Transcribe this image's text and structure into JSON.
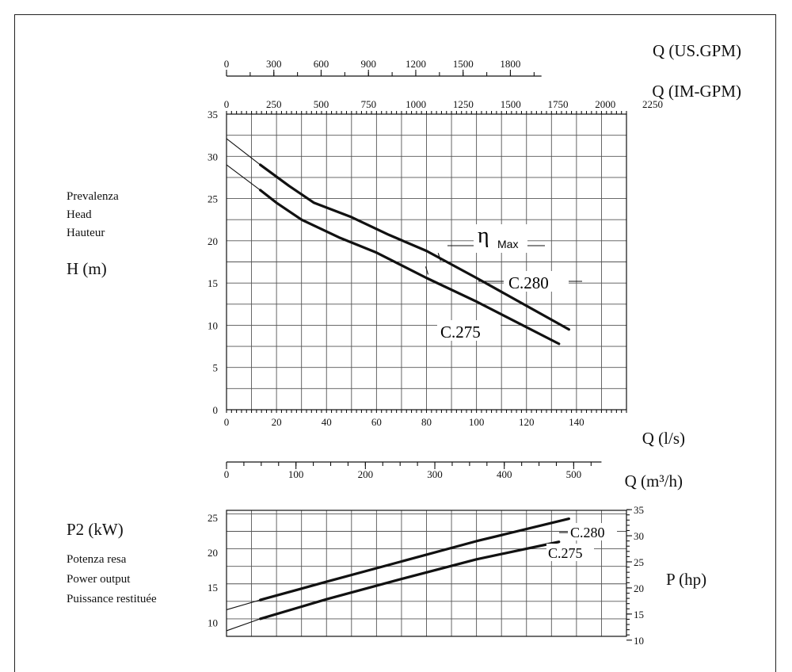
{
  "chart_data": [
    {
      "type": "line",
      "xlabel": "Q (l/s)",
      "ylabel": "H (m)",
      "ylabel_lines": [
        "Prevalenza",
        "Head",
        "Hauteur"
      ],
      "xlim": [
        0,
        160
      ],
      "ylim": [
        0,
        35
      ],
      "x_ticks": [
        0,
        20,
        40,
        60,
        80,
        100,
        120,
        140
      ],
      "y_ticks": [
        0,
        5,
        10,
        15,
        20,
        25,
        30,
        35
      ],
      "grid": true,
      "secondary_axes": [
        {
          "label": "Q (US.GPM)",
          "ticks": [
            "0",
            "300",
            "600",
            "900",
            "1200",
            "1500",
            "1800"
          ],
          "ticks_ls": [
            0,
            18.93,
            37.85,
            56.78,
            75.71,
            94.64,
            113.56
          ]
        },
        {
          "label": "Q (IM-GPM)",
          "ticks": [
            "0",
            "250",
            "500",
            "750",
            "1000",
            "1250",
            "1500",
            "1750",
            "2000",
            "2250"
          ],
          "ticks_ls": [
            0,
            18.94,
            37.88,
            56.82,
            75.77,
            94.71,
            113.65,
            132.59,
            151.53,
            170.47
          ]
        },
        {
          "label": "Q (m³/h)",
          "ticks": [
            "0",
            "100",
            "200",
            "300",
            "400",
            "500"
          ],
          "ticks_ls": [
            0,
            27.78,
            55.56,
            83.33,
            111.11,
            138.89
          ]
        }
      ],
      "annotation": "η",
      "annotation_sub": "Max",
      "eta_max_points": [
        [
          85,
          17.8
        ],
        [
          80,
          16.2
        ]
      ],
      "series": [
        {
          "name": "C.280",
          "x": [
            13.5,
            25,
            35,
            50,
            65,
            80,
            100,
            137
          ],
          "y": [
            29,
            26.5,
            24.5,
            22.8,
            20.7,
            18.8,
            15.6,
            9.5
          ],
          "extension": [
            [
              0,
              32.1
            ],
            [
              13.5,
              29
            ]
          ]
        },
        {
          "name": "C.275",
          "x": [
            13.5,
            20,
            30,
            45,
            60,
            80,
            100,
            133
          ],
          "y": [
            26,
            24.5,
            22.5,
            20.4,
            18.6,
            15.6,
            12.8,
            7.8
          ],
          "extension": [
            [
              0,
              29
            ],
            [
              13.5,
              26
            ]
          ]
        }
      ]
    },
    {
      "type": "line",
      "ylabel": "P2 (kW)",
      "ylabel_lines": [
        "Potenza resa",
        "Power output",
        "Puissance restituée"
      ],
      "y2label": "P (hp)",
      "xlim": [
        0,
        160
      ],
      "ylim": [
        8,
        26
      ],
      "y_ticks": [
        10,
        15,
        20,
        25
      ],
      "y2_ticks": [
        10,
        15,
        20,
        25,
        30,
        35
      ],
      "grid": true,
      "series": [
        {
          "name": "C.280",
          "x": [
            13.5,
            40,
            70,
            100,
            137
          ],
          "y": [
            13.2,
            15.8,
            18.7,
            21.6,
            24.8
          ],
          "extension": [
            [
              0,
              11.8
            ],
            [
              13.5,
              13.2
            ]
          ]
        },
        {
          "name": "C.275",
          "x": [
            13.5,
            40,
            70,
            100,
            133
          ],
          "y": [
            10.5,
            13.3,
            16.2,
            19.0,
            21.5
          ],
          "extension": [
            [
              0,
              8.8
            ],
            [
              13.5,
              10.5
            ]
          ]
        }
      ]
    }
  ]
}
